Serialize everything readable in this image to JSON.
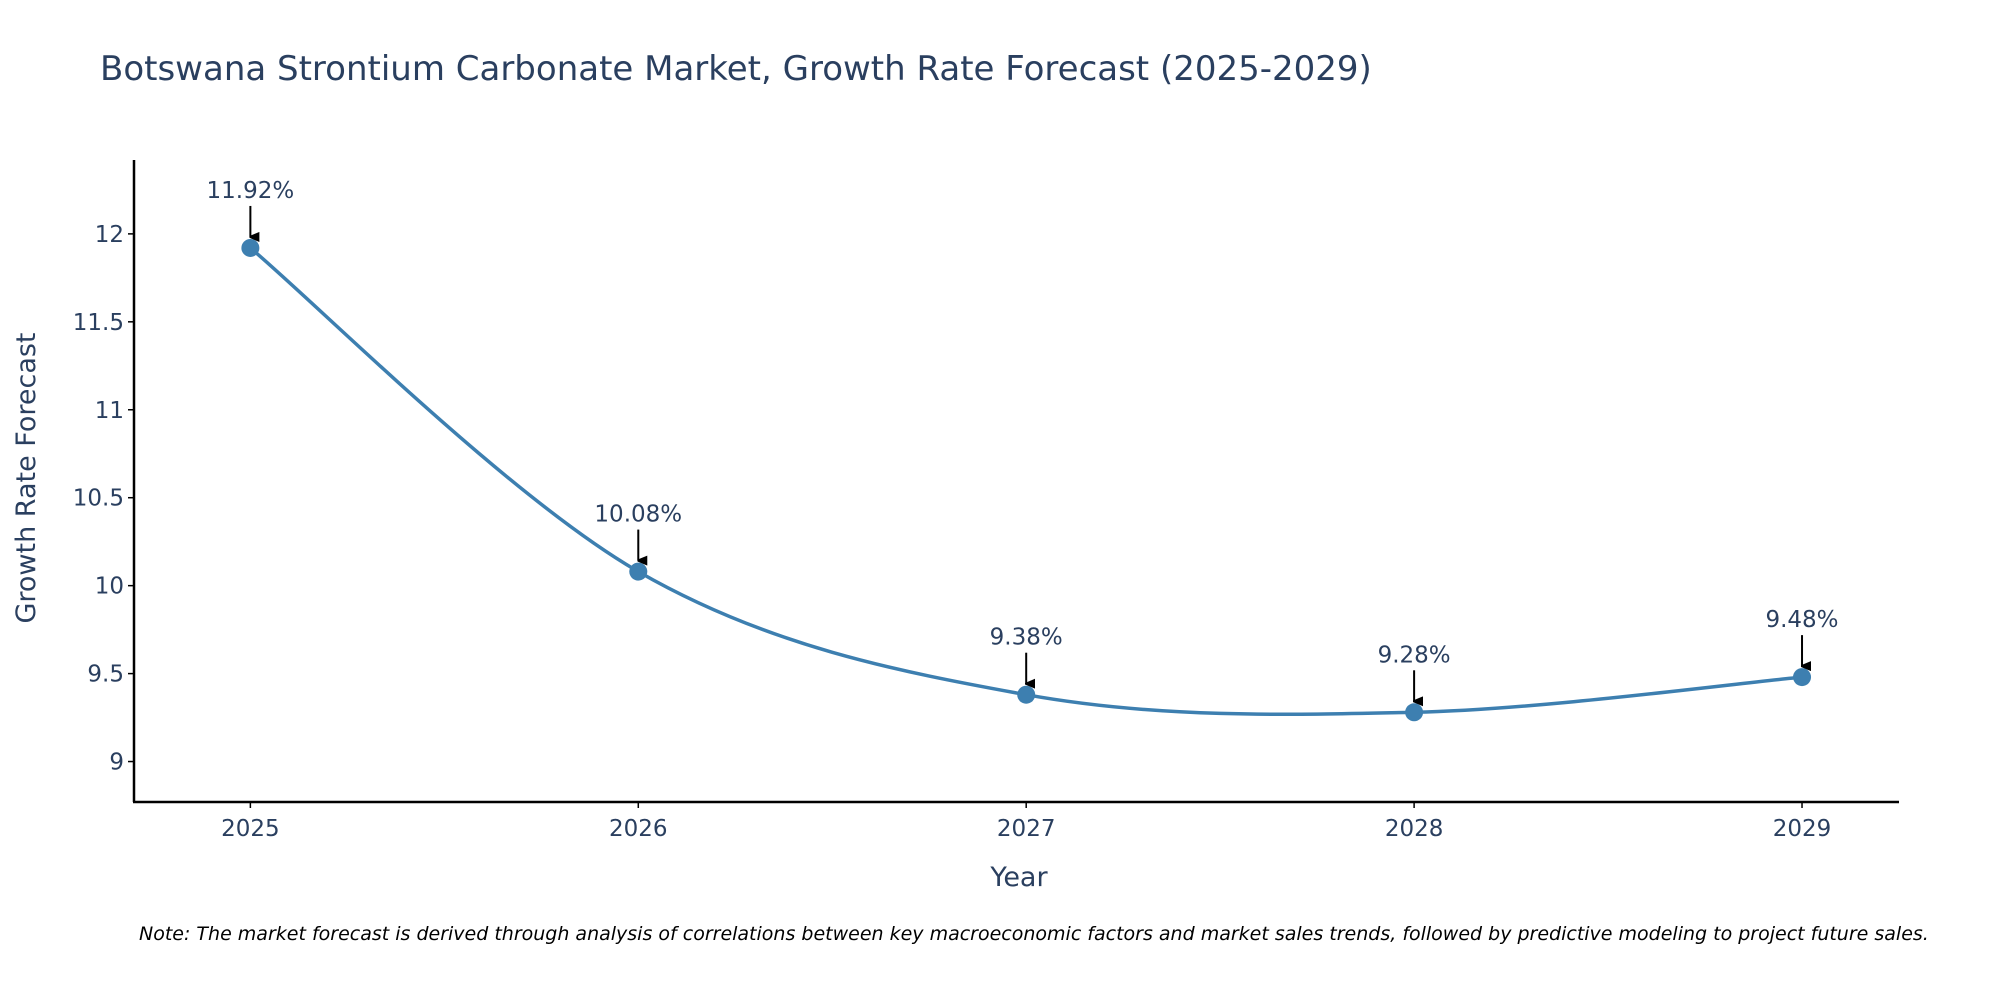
{
  "chart_data": {
    "type": "line",
    "title": "Botswana Strontium Carbonate Market, Growth Rate Forecast (2025-2029)",
    "xlabel": "Year",
    "ylabel": "Growth Rate Forecast",
    "x": [
      2025,
      2026,
      2027,
      2028,
      2029
    ],
    "x_tick_labels": [
      "2025",
      "2026",
      "2027",
      "2028",
      "2029"
    ],
    "series": [
      {
        "name": "Growth Rate Forecast",
        "values": [
          11.92,
          10.08,
          9.38,
          9.28,
          9.48
        ],
        "color": "#3d7fb0",
        "line_shape": "spline"
      }
    ],
    "data_labels": [
      "11.92%",
      "10.08%",
      "9.38%",
      "9.28%",
      "9.48%"
    ],
    "y_ticks": [
      9,
      9.5,
      10,
      10.5,
      11,
      11.5,
      12
    ],
    "y_tick_labels": [
      "9",
      "9.5",
      "10",
      "10.5",
      "11",
      "11.5",
      "12"
    ],
    "ylim": [
      8.77,
      12.42
    ],
    "xlim": [
      2024.7,
      2029.25
    ],
    "grid": false,
    "axis_color": "#000000",
    "text_color": "#2a3f5f",
    "arrow_color": "#000000",
    "note": "Note: The market forecast is derived through analysis of correlations between key macroeconomic factors and market sales trends, followed by predictive modeling to project future sales."
  }
}
